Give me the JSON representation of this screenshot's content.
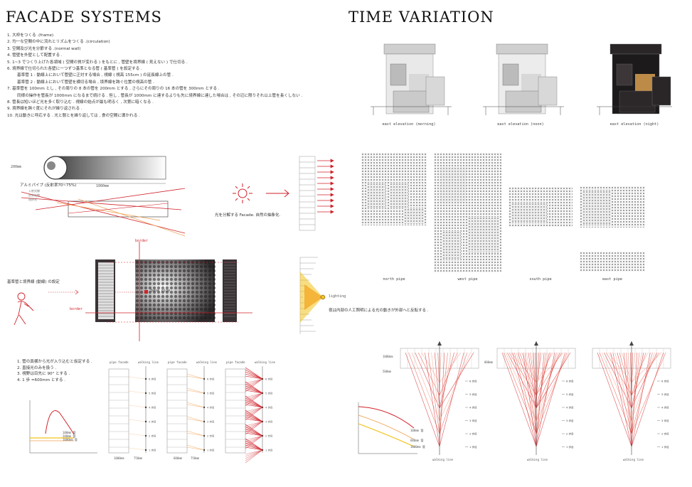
{
  "left": {
    "title": "FACADE SYSTEMS",
    "steps": [
      "1. 大枠をつくる .(frame)",
      "2. 均一な空間の中に流れとリズムをつくる .(circulation)",
      "3. 空間及び光を分節する .(normal wall)",
      "4. 管壁を外壁として配置する .",
      "5. 1~3 でつくり上げた各領域 ( 空間の質が変わる ) をもとに , 管壁を境界線 ( 見えない ) で仕切る .",
      "6. 境界線で仕切られた各壁に一つずつ基準となる管 ( 基準管 ) を設定する .",
      "基準管 1 : 動線上において管壁に正対する場合 , 視線 ( 視高 155cm ) の延長線上の管 .",
      "基準管 2 : 動線上において管壁を横切る場合 , 境界線を跨ぐ位置の視高の管 .",
      "7. 基準管を 100mm とし , その周りの 8 本の管を 200mm とする , さらにその周りの 16 本の管を 300mm とする .",
      "同様の操作を管長が 1000mm になるまで続ける . 但し , 管長が 1000mm に達するよりも先に境界線に達した場合は , その辺に限りそれ以上管を長くしない .",
      "8. 管長は短いほど光を多く取り込む . 視線の始点が最も明るく , 次第に暗くなる .",
      "9. 境界線を跨ぐ度にそれが繰り返される .",
      "10. 光は動きに呼応する . 光と闇とを繰り返しては , 食の空間に導かれる ."
    ],
    "pipe": {
      "dim_h": "200mm",
      "dim_len": "1000mm",
      "material": "アルミパイプ (反射率70~75%)",
      "rays": [
        "入射光線",
        "反射光線",
        "屈折光"
      ]
    },
    "split_caption": "光を分解する Facade. 自然の抽象化.",
    "border_caption": "基準管と境界線 (動線) の設定",
    "base_pipe": "base pipe",
    "border": "border",
    "lighting": "lighting",
    "lighting_caption": "夜は内部の人工照明による光の動きが外部へと反転する .",
    "study_list": [
      "1. 管の真横から光が入り込むと仮定する .",
      "2. 直接光のみを扱う .",
      "3. 視野は目先に 90° とする .",
      "4. 1 歩 =600mm とする ."
    ],
    "study_labels": [
      "pipe facade",
      "walking line"
    ],
    "steps_labels": [
      "1 歩目",
      "2 歩目",
      "3 歩目",
      "4 歩目",
      "5 歩目",
      "6 歩目"
    ],
    "graph_lines": [
      "100mm 管",
      "200mm 管",
      "1000mm 管"
    ],
    "study_dims": [
      "1000mm",
      "750mm",
      "600mm",
      "750mm"
    ]
  },
  "right": {
    "title": "TIME VARIATION",
    "elevations": [
      "east elevation (morning)",
      "east elevation (noon)",
      "east elevation (night)"
    ],
    "pipes": [
      "north pipe",
      "west pipe",
      "south pipe",
      "east pipe"
    ],
    "walking": "walking line",
    "fan_dims": [
      "1000mm",
      "500mm",
      "800mm"
    ],
    "fan_steps": [
      "6 歩目",
      "5 歩目",
      "4 歩目",
      "3 歩目",
      "2 歩目",
      "1 歩目"
    ],
    "graph_lines": [
      "100mm 管",
      "600mm 管",
      "1000mm 管"
    ]
  },
  "colors": {
    "red": "#d0222a",
    "orange": "#f0a050",
    "yellow": "#f3c21b",
    "dark": "#3a3336"
  }
}
